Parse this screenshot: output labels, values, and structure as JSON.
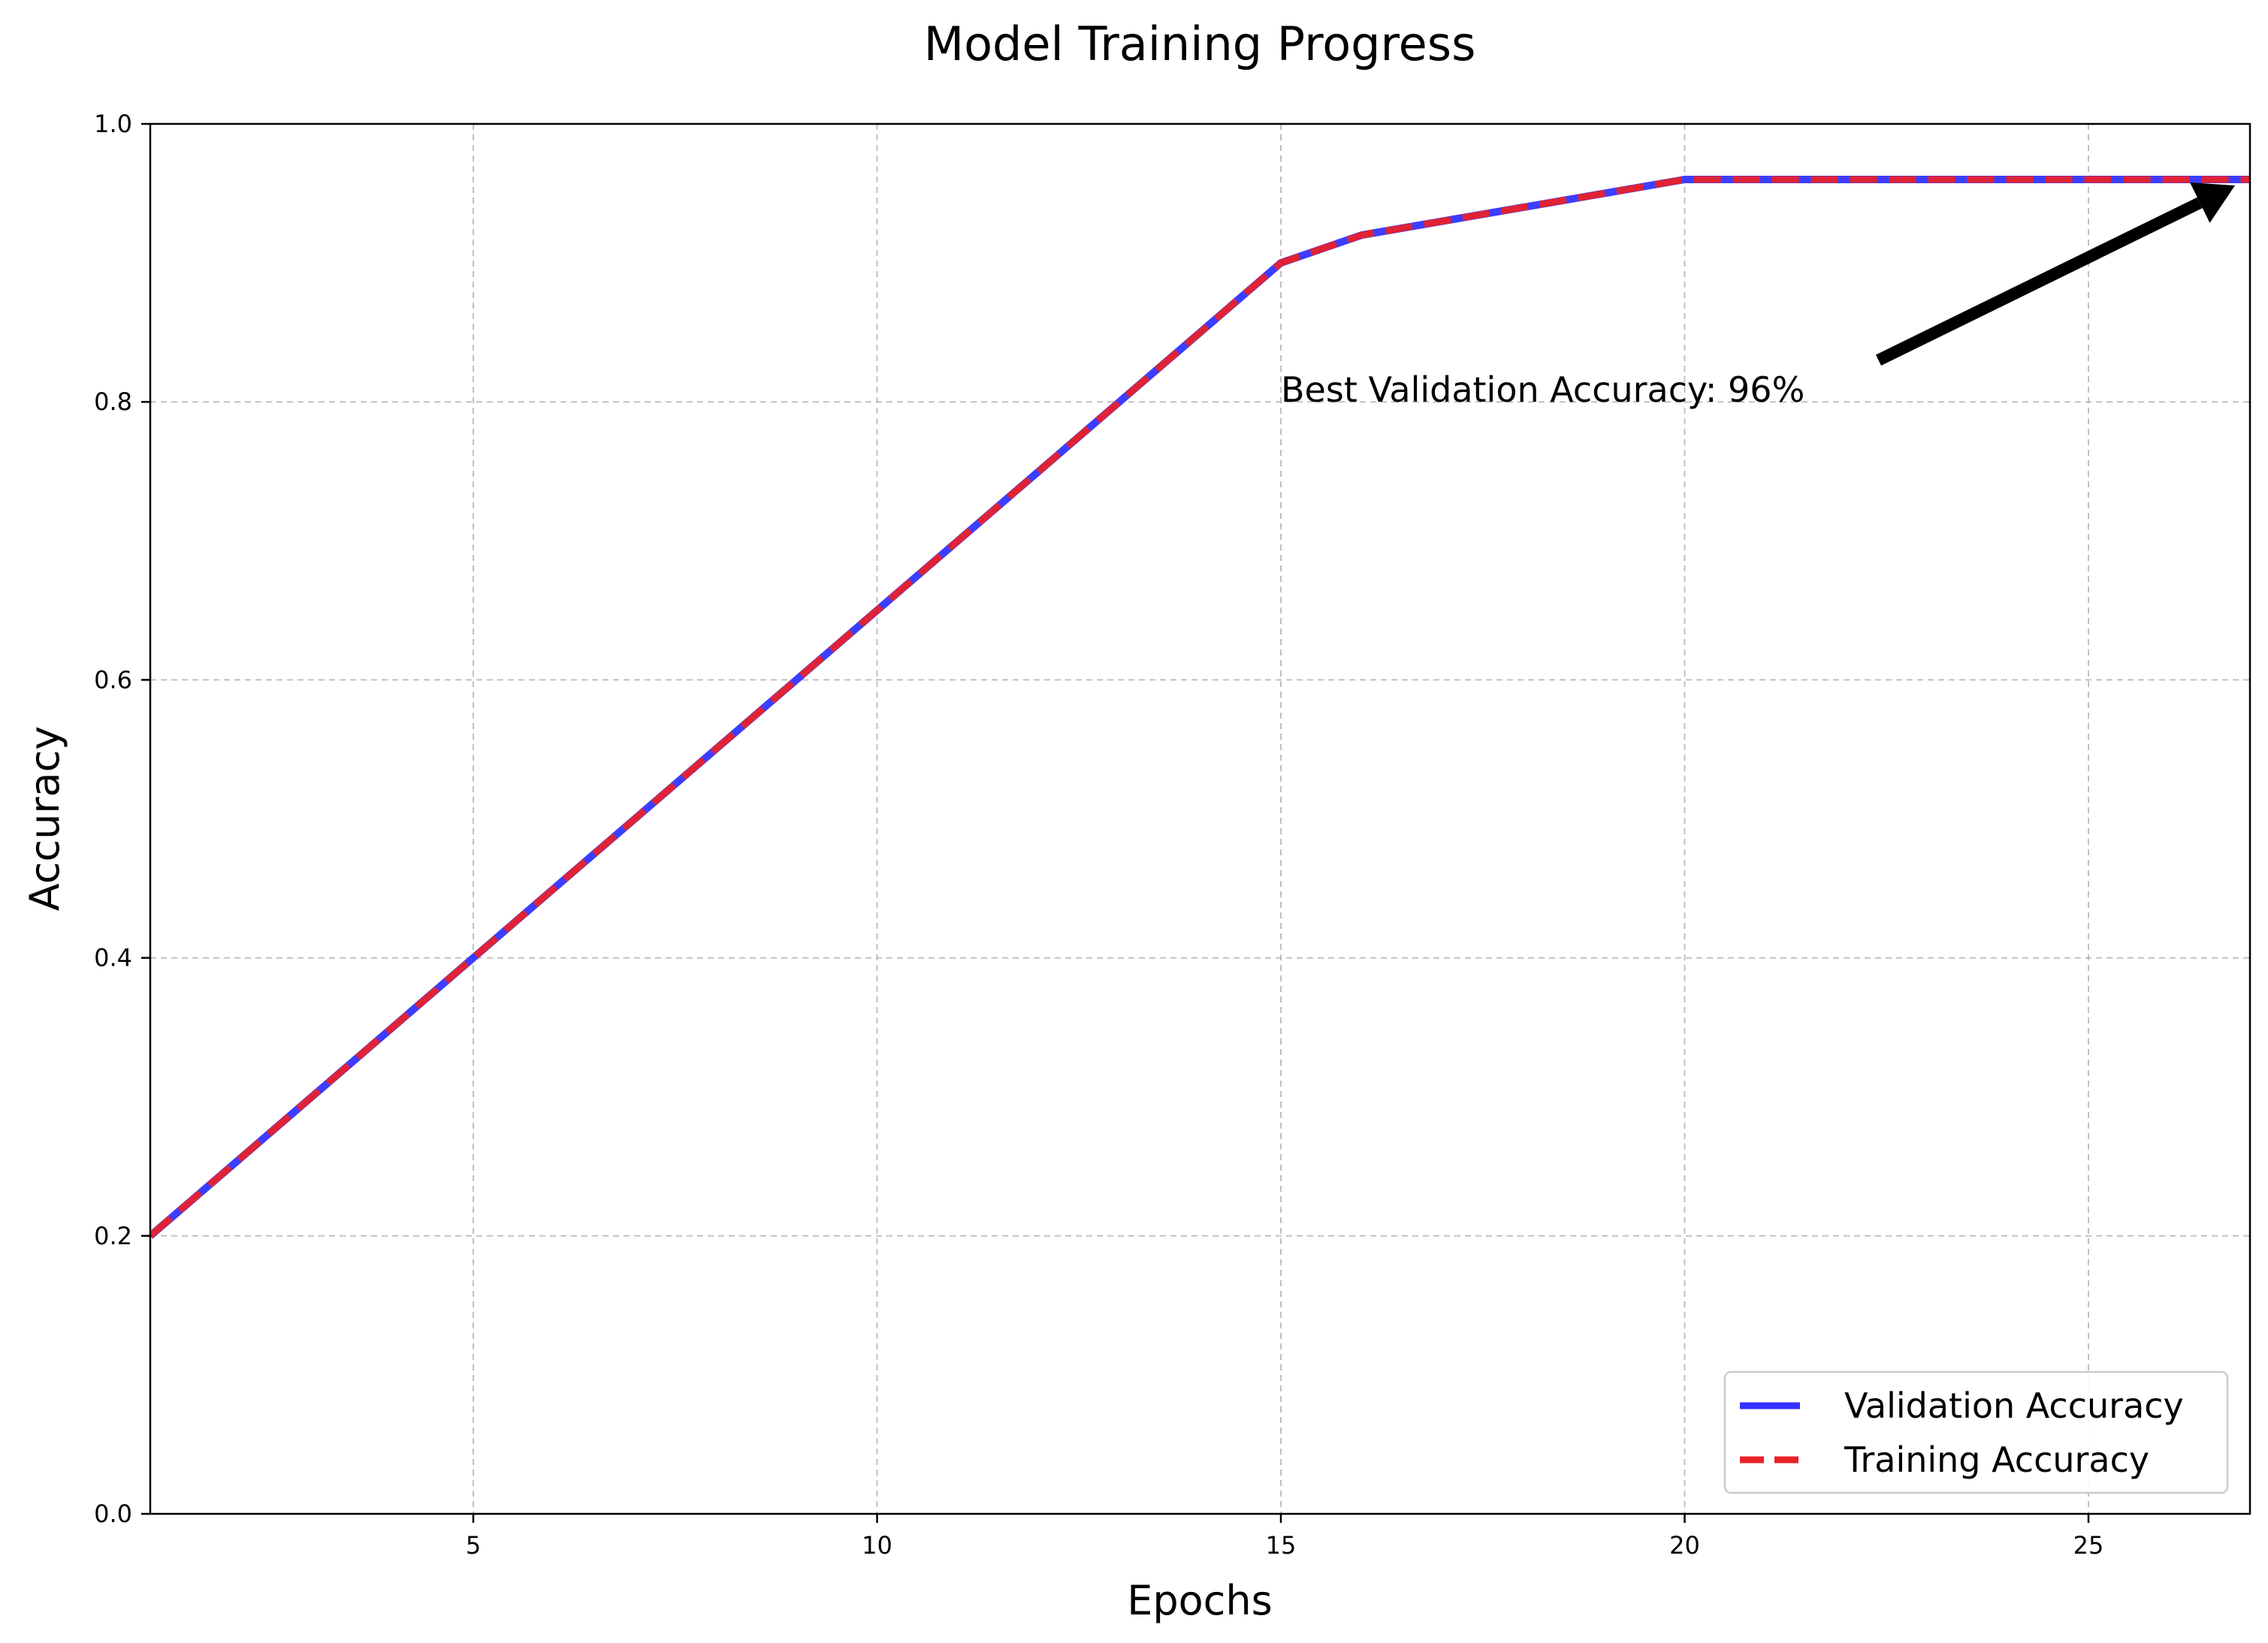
{
  "chart_data": {
    "type": "line",
    "title": "Model Training Progress",
    "xlabel": "Epochs",
    "ylabel": "Accuracy",
    "xlim": [
      1,
      27
    ],
    "ylim": [
      0.0,
      1.0
    ],
    "x_ticks": [
      5,
      10,
      15,
      20,
      25
    ],
    "y_ticks": [
      0.0,
      0.2,
      0.4,
      0.6,
      0.8,
      1.0
    ],
    "x_tick_labels": [
      "5",
      "10",
      "15",
      "20",
      "25"
    ],
    "y_tick_labels": [
      "0.0",
      "0.2",
      "0.4",
      "0.6",
      "0.8",
      "1.0"
    ],
    "grid": true,
    "legend_position": "lower-right",
    "x": [
      1,
      2,
      3,
      4,
      5,
      6,
      7,
      8,
      9,
      10,
      11,
      12,
      13,
      14,
      15,
      16,
      17,
      18,
      19,
      20,
      21,
      22,
      23,
      24,
      25,
      26,
      27
    ],
    "series": [
      {
        "name": "Validation Accuracy",
        "color": "#3333ff",
        "style": "solid",
        "values": [
          0.2,
          0.25,
          0.3,
          0.35,
          0.4,
          0.45,
          0.5,
          0.55,
          0.6,
          0.65,
          0.7,
          0.75,
          0.8,
          0.85,
          0.9,
          0.92,
          0.93,
          0.94,
          0.95,
          0.96,
          0.96,
          0.96,
          0.96,
          0.96,
          0.96,
          0.96,
          0.96
        ]
      },
      {
        "name": "Training Accuracy",
        "color": "#e8222a",
        "style": "dashed",
        "values": [
          0.2,
          0.25,
          0.3,
          0.35,
          0.4,
          0.45,
          0.5,
          0.55,
          0.6,
          0.65,
          0.7,
          0.75,
          0.8,
          0.85,
          0.9,
          0.92,
          0.93,
          0.94,
          0.95,
          0.96,
          0.96,
          0.96,
          0.96,
          0.96,
          0.96,
          0.96,
          0.96
        ]
      }
    ],
    "annotations": [
      {
        "text": "Best Validation Accuracy: 96%",
        "text_x": 15,
        "text_y": 0.8,
        "arrow_to_x": 27,
        "arrow_to_y": 0.96,
        "arrow_from_x": 22.4,
        "arrow_from_y": 0.83
      }
    ]
  }
}
